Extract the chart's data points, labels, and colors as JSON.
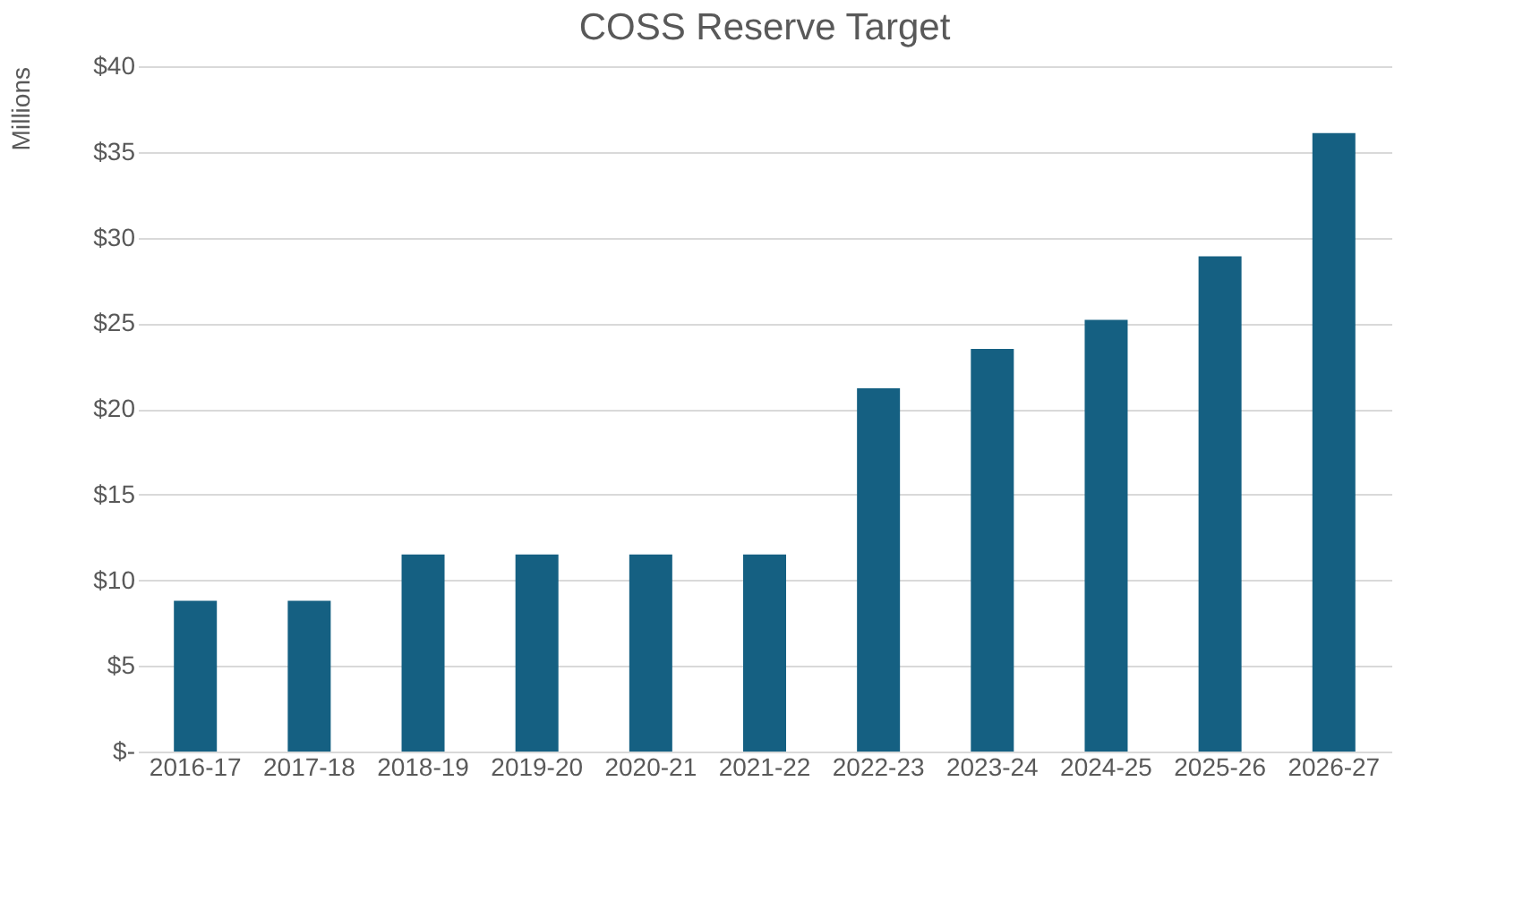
{
  "chart_data": {
    "type": "bar",
    "title": "COSS Reserve Target",
    "ylabel": "Millions",
    "categories": [
      "2016-17",
      "2017-18",
      "2018-19",
      "2019-20",
      "2020-21",
      "2021-22",
      "2022-23",
      "2023-24",
      "2024-25",
      "2025-26",
      "2026-27"
    ],
    "values": [
      8.8,
      8.8,
      11.5,
      11.5,
      11.5,
      11.5,
      21.2,
      23.5,
      25.2,
      28.9,
      36.1
    ],
    "color": "#156082",
    "ylim": [
      0,
      40
    ],
    "yticks": [
      {
        "value": 0,
        "label": "$-"
      },
      {
        "value": 5,
        "label": "$5"
      },
      {
        "value": 10,
        "label": "$10"
      },
      {
        "value": 15,
        "label": "$15"
      },
      {
        "value": 20,
        "label": "$20"
      },
      {
        "value": 25,
        "label": "$25"
      },
      {
        "value": 30,
        "label": "$30"
      },
      {
        "value": 35,
        "label": "$35"
      },
      {
        "value": 40,
        "label": "$40"
      }
    ],
    "grid": "y"
  }
}
